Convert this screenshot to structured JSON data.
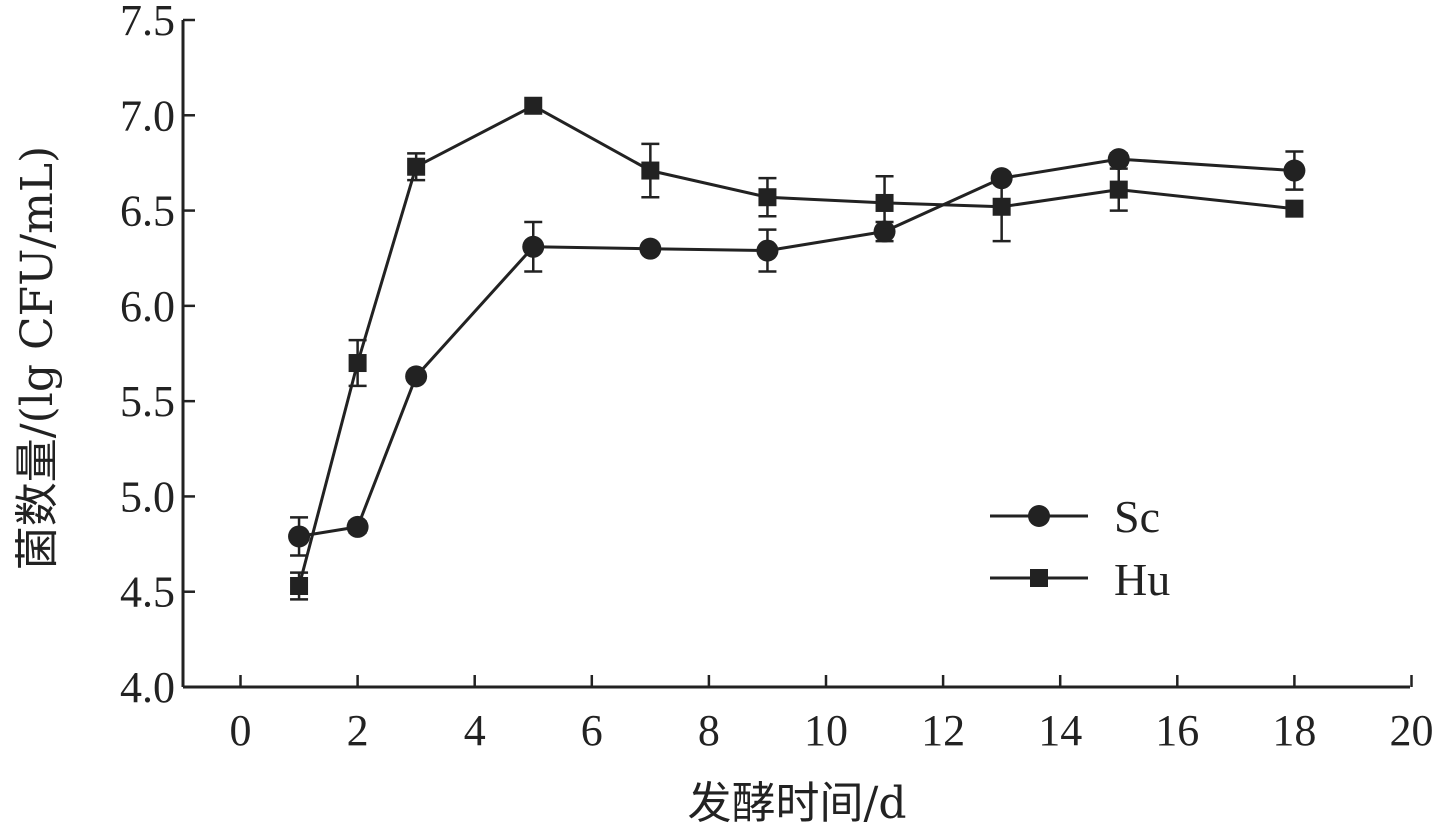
{
  "chart_data": {
    "type": "line",
    "xlabel": "发酵时间/d",
    "ylabel": "菌数量/(lg CFU/mL)",
    "xlim": [
      0,
      20
    ],
    "ylim": [
      4.0,
      7.5
    ],
    "x_ticks": [
      "0",
      "2",
      "4",
      "6",
      "8",
      "10",
      "12",
      "14",
      "16",
      "18",
      "20"
    ],
    "y_ticks": [
      "4.0",
      "4.5",
      "5.0",
      "5.5",
      "6.0",
      "6.5",
      "7.0",
      "7.5"
    ],
    "grid": false,
    "legend_position": "bottom-right",
    "series": [
      {
        "name": "Sc",
        "marker": "circle",
        "color": "#222222",
        "x": [
          1,
          2,
          3,
          5,
          7,
          9,
          11,
          13,
          15,
          18
        ],
        "y": [
          4.79,
          4.84,
          5.63,
          6.31,
          6.3,
          6.29,
          6.39,
          6.67,
          6.77,
          6.71
        ],
        "error": [
          0.1,
          0.03,
          0.0,
          0.13,
          0.0,
          0.11,
          0.05,
          0.0,
          0.03,
          0.1
        ]
      },
      {
        "name": "Hu",
        "marker": "square",
        "color": "#222222",
        "x": [
          1,
          2,
          3,
          5,
          7,
          9,
          11,
          13,
          15,
          18
        ],
        "y": [
          4.53,
          5.7,
          6.73,
          7.05,
          6.71,
          6.57,
          6.54,
          6.52,
          6.61,
          6.51
        ],
        "error": [
          0.07,
          0.12,
          0.07,
          0.0,
          0.14,
          0.1,
          0.14,
          0.18,
          0.11,
          0.0
        ]
      }
    ]
  }
}
